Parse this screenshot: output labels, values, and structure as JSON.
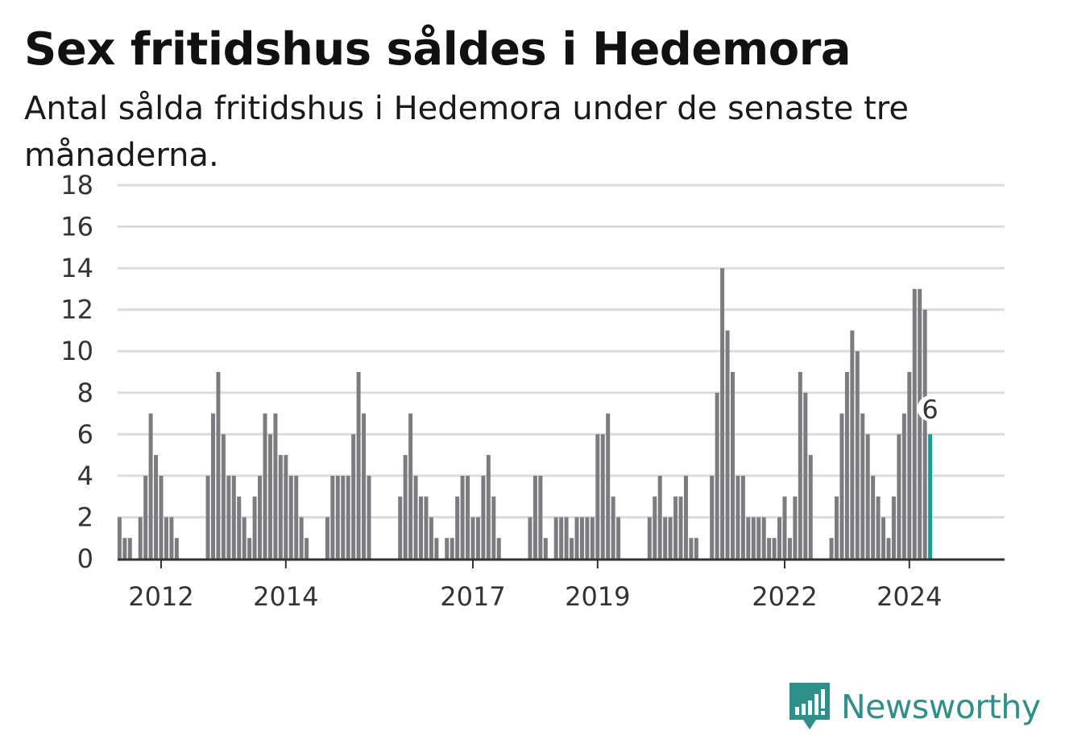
{
  "title": "Sex fritidshus såldes i Hedemora",
  "subtitle": "Antal sålda fritidshus i Hedemora under de senaste tre månaderna.",
  "brand": {
    "name": "Newsworthy",
    "icon": "newsworthy-logo-icon"
  },
  "colors": {
    "bar": "#7c7c80",
    "highlight": "#1f9b94",
    "grid": "#dcdcdc",
    "axis": "#333333",
    "brand": "#2f8f8b"
  },
  "chart_data": {
    "type": "bar",
    "title": "Sex fritidshus såldes i Hedemora",
    "subtitle": "Antal sålda fritidshus i Hedemora under de senaste tre månaderna.",
    "xlabel": "",
    "ylabel": "",
    "ylim": [
      0,
      18
    ],
    "yticks": [
      0,
      2,
      4,
      6,
      8,
      10,
      12,
      14,
      16,
      18
    ],
    "grid": true,
    "x_tick_labels": [
      {
        "label": "2012",
        "index": 0
      },
      {
        "label": "2014",
        "index": 24
      },
      {
        "label": "2017",
        "index": 60
      },
      {
        "label": "2019",
        "index": 84
      },
      {
        "label": "2022",
        "index": 120
      },
      {
        "label": "2024",
        "index": 144
      }
    ],
    "start_index": -8,
    "values": [
      2,
      1,
      1,
      0,
      2,
      4,
      7,
      5,
      4,
      2,
      2,
      1,
      0,
      0,
      0,
      0,
      0,
      4,
      7,
      9,
      6,
      4,
      4,
      3,
      2,
      1,
      3,
      4,
      7,
      6,
      7,
      5,
      5,
      4,
      4,
      2,
      1,
      0,
      0,
      0,
      2,
      4,
      4,
      4,
      4,
      6,
      9,
      7,
      4,
      0,
      0,
      0,
      0,
      0,
      3,
      5,
      7,
      4,
      3,
      3,
      2,
      1,
      0,
      1,
      1,
      3,
      4,
      4,
      2,
      2,
      4,
      5,
      3,
      1,
      0,
      0,
      0,
      0,
      0,
      2,
      4,
      4,
      1,
      0,
      2,
      2,
      2,
      1,
      2,
      2,
      2,
      2,
      6,
      6,
      7,
      3,
      2,
      0,
      0,
      0,
      0,
      0,
      2,
      3,
      4,
      2,
      2,
      3,
      3,
      4,
      1,
      1,
      0,
      0,
      4,
      8,
      14,
      11,
      9,
      4,
      4,
      2,
      2,
      2,
      2,
      1,
      1,
      2,
      3,
      1,
      3,
      9,
      8,
      5,
      0,
      0,
      0,
      1,
      3,
      7,
      9,
      11,
      10,
      7,
      6,
      4,
      3,
      2,
      1,
      3,
      6,
      7,
      9,
      13,
      13,
      12,
      6
    ],
    "highlight": {
      "index": -1,
      "label": "6"
    }
  }
}
